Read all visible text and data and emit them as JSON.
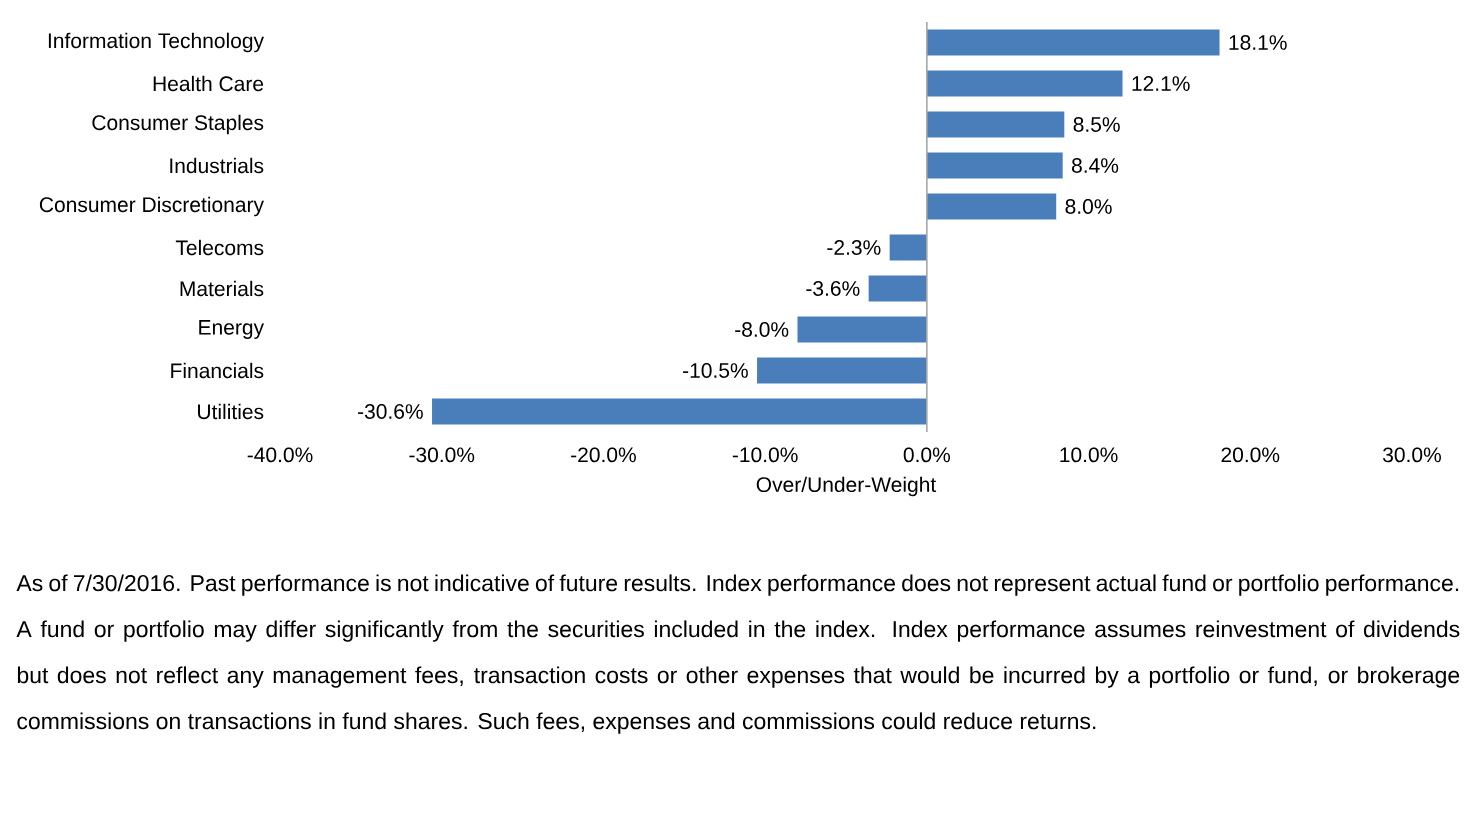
{
  "chart_data": {
    "type": "bar",
    "orientation": "horizontal",
    "categories": [
      "Information Technology",
      "Health Care",
      "Consumer Staples",
      "Industrials",
      "Consumer Discretionary",
      "Telecoms",
      "Materials",
      "Energy",
      "Financials",
      "Utilities"
    ],
    "values": [
      18.1,
      12.1,
      8.5,
      8.4,
      8.0,
      -2.3,
      -3.6,
      -8.0,
      -10.5,
      -30.6
    ],
    "value_labels": [
      "18.1%",
      "12.1%",
      "8.5%",
      "8.4%",
      "8.0%",
      "-2.3%",
      "-3.6%",
      "-8.0%",
      "-10.5%",
      "-30.6%"
    ],
    "color": "#4a7ebb",
    "xlim": [
      -40,
      30
    ],
    "xticks": [
      {
        "value": -40,
        "label": "-40.0%"
      },
      {
        "value": -30,
        "label": "-30.0%"
      },
      {
        "value": -20,
        "label": "-20.0%"
      },
      {
        "value": -10,
        "label": "-10.0%"
      },
      {
        "value": 0,
        "label": "0.0%"
      },
      {
        "value": 10,
        "label": "10.0%"
      },
      {
        "value": 20,
        "label": "20.0%"
      },
      {
        "value": 30,
        "label": "30.0%"
      }
    ],
    "xlabel": "Over/Under-Weight",
    "annotations": [
      "As of 7/30/2016. Past performance is not indicative of future results. Index performance does not represent actual fund or portfolio performance. A fund or portfolio may differ significantly from the securities included in the index. Index performance assumes reinvestment of dividends but does not reflect any management fees, transaction costs or other expenses that would be incurred by a portfolio or fund, or brokerage commissions on transactions in fund shares. Such fees, expenses and commissions could reduce returns."
    ]
  }
}
